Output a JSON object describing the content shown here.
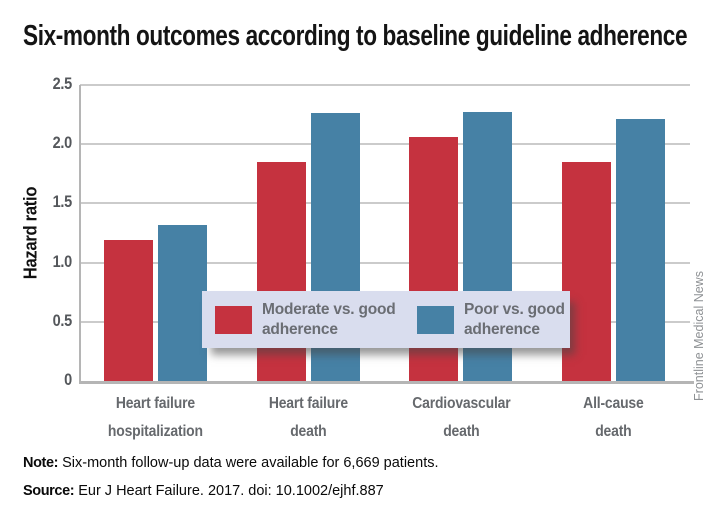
{
  "watermark": "Frontline Medical News",
  "notes": {
    "note_label": "Note:",
    "note_text": " Six-month follow-up data were available for 6,669 patients.",
    "source_label": "Source:",
    "source_text": " Eur J Heart Failure. 2017. doi: 10.1002/ejhf.887"
  },
  "chart_data": {
    "type": "bar",
    "title": "Six-month outcomes according to baseline guideline adherence",
    "ylabel": "Hazard ratio",
    "xlabel": "",
    "ylim": [
      0,
      2.5
    ],
    "ytick_labels": [
      "0",
      "0.5",
      "1.0",
      "1.5",
      "2.0",
      "2.5"
    ],
    "grid": true,
    "legend_position": "inside-bottom-center",
    "categories": [
      "Heart failure hospitalization",
      "Heart failure death",
      "Cardiovascular death",
      "All-cause death"
    ],
    "category_label_lines": [
      [
        "Heart failure",
        "hospitalization"
      ],
      [
        "Heart failure",
        "death"
      ],
      [
        "Cardiovascular",
        "death"
      ],
      [
        "All-cause",
        "death"
      ]
    ],
    "series": [
      {
        "name": "Moderate vs. good adherence",
        "color": "#c5323f",
        "values": [
          1.19,
          1.85,
          2.06,
          1.85
        ]
      },
      {
        "name": "Poor vs. good adherence",
        "color": "#4681a5",
        "values": [
          1.32,
          2.26,
          2.27,
          2.21
        ]
      }
    ]
  }
}
